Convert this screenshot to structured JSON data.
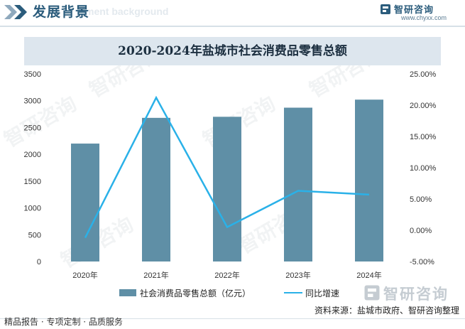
{
  "header": {
    "title": "发展背景",
    "watermark": "ment background",
    "brand_name": "智研咨询",
    "brand_url": "www.chyxx.com"
  },
  "chart_data": {
    "type": "bar",
    "title": "2020-2024年盐城市社会消费品零售总额",
    "categories": [
      "2020年",
      "2021年",
      "2022年",
      "2023年",
      "2024年"
    ],
    "series": [
      {
        "name": "社会消费品零售总额（亿元）",
        "type": "bar",
        "axis": "left",
        "color": "#5f8fa6",
        "values": [
          2200,
          2680,
          2700,
          2870,
          3020
        ]
      },
      {
        "name": "同比增速",
        "type": "line",
        "axis": "right",
        "color": "#2ab1e8",
        "values": [
          -1.2,
          21.2,
          0.5,
          6.3,
          5.7
        ]
      }
    ],
    "y_left": {
      "min": 0,
      "max": 3500,
      "ticks": [
        "0",
        "500",
        "1000",
        "1500",
        "2000",
        "2500",
        "3000",
        "3500"
      ]
    },
    "y_right": {
      "min": -5,
      "max": 25,
      "ticks": [
        "-5.00%",
        "0.00%",
        "5.00%",
        "10.00%",
        "15.00%",
        "20.00%",
        "25.00%"
      ]
    },
    "grid": false,
    "legend_position": "bottom"
  },
  "legend": {
    "bar_label": "社会消费品零售总额（亿元）",
    "line_label": "同比增速"
  },
  "bottom_brand": "智研咨询",
  "source": "资料来源：盐城市政府、智研咨询整理",
  "footer": "精品报告 · 专项定制 · 品质服务"
}
